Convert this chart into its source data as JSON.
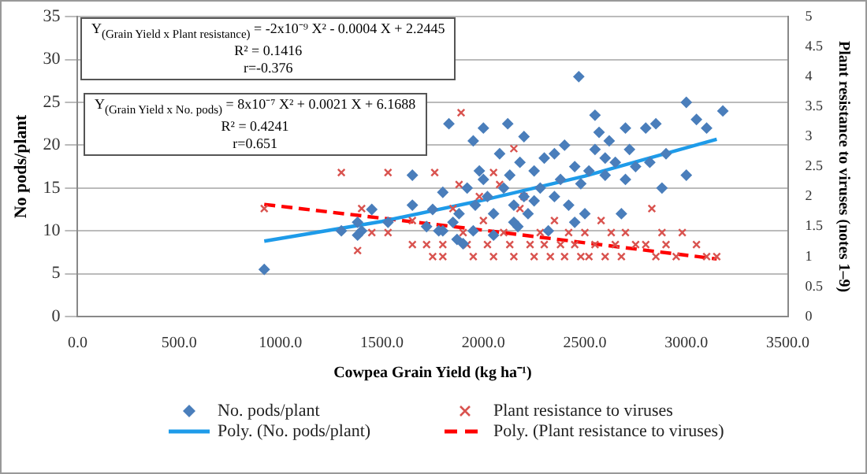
{
  "chart_data": {
    "type": "scatter",
    "xlabel": "Cowpea Grain Yield (kg ha⁻¹)",
    "ylabel": "No pods/plant",
    "y2label": "Plant resistance to viruses (notes 1–9)",
    "xlim": [
      0,
      3500
    ],
    "xticks": [
      {
        "value": 0,
        "label": "0.0"
      },
      {
        "value": 500,
        "label": "500.0"
      },
      {
        "value": 1000,
        "label": "1000.0"
      },
      {
        "value": 1500,
        "label": "1500.0"
      },
      {
        "value": 2000,
        "label": "2000.0"
      },
      {
        "value": 2500,
        "label": "2500.0"
      },
      {
        "value": 3000,
        "label": "3000.0"
      },
      {
        "value": 3500,
        "label": "3500.0"
      }
    ],
    "ylim": [
      0,
      35
    ],
    "yticks": [
      0,
      5,
      10,
      15,
      20,
      25,
      30,
      35
    ],
    "y2lim": [
      0,
      5
    ],
    "y2ticks": [
      0,
      0.5,
      1,
      1.5,
      2,
      2.5,
      3,
      3.5,
      4,
      4.5,
      5
    ],
    "grid": "y",
    "legend": "bottom",
    "annotations": [
      "Y$_{(Grain Yield x Plant resistance)}$ = -2x10⁻⁹ X² - 0.0004 X + 2.2445",
      "R² = 0.1416",
      "r=-0.376",
      "Y$_{(Grain Yield x No. pods)}$ = 8x10⁻⁷ X² + 0.0021 X + 6.1688",
      "R² = 0.4241",
      "r=0.651"
    ],
    "series": [
      {
        "name": "No. pods/plant",
        "marker": "diamond",
        "color": "#4a7ebb",
        "x": [
          920,
          1300,
          1380,
          1400,
          1380,
          1450,
          1530,
          1650,
          1650,
          1720,
          1750,
          1780,
          1800,
          1830,
          1850,
          1870,
          1880,
          1900,
          1920,
          1950,
          1960,
          1980,
          2000,
          2000,
          2020,
          2050,
          2080,
          2100,
          2120,
          2130,
          2150,
          2170,
          2180,
          2200,
          2200,
          2220,
          2250,
          2280,
          2300,
          2320,
          2350,
          2380,
          2400,
          2420,
          2450,
          2480,
          2470,
          2500,
          2520,
          2550,
          2570,
          2600,
          2620,
          2650,
          2680,
          2700,
          2720,
          2750,
          2800,
          2820,
          2850,
          2880,
          2900,
          3000,
          3000,
          3050,
          3100,
          3180,
          1800,
          1950,
          2050,
          2150,
          2250,
          2350,
          2450,
          2600,
          2700,
          2550
        ],
        "values": [
          5.5,
          10,
          11,
          10,
          9.5,
          12.5,
          11,
          16.5,
          13,
          10.5,
          12.5,
          10,
          14.5,
          22.5,
          11,
          9,
          12,
          8.5,
          15,
          20.5,
          13,
          17,
          16,
          22,
          14,
          12,
          19,
          15,
          22.5,
          16.5,
          13,
          10.5,
          18,
          14,
          21,
          12,
          17,
          15,
          18.5,
          10,
          19,
          16,
          20,
          13,
          17.5,
          15.5,
          28,
          12,
          17,
          19.5,
          21.5,
          16.5,
          20.5,
          18,
          12,
          16,
          19.5,
          17.5,
          22,
          18,
          22.5,
          15,
          19,
          25,
          16.5,
          23,
          22,
          24,
          10,
          10,
          9.5,
          11,
          13.5,
          14,
          11,
          18.5,
          22,
          23.5
        ]
      },
      {
        "name": "Plant resistance to viruses",
        "marker": "cross",
        "axis": "y2",
        "color": "#d9534f",
        "x": [
          920,
          1300,
          1380,
          1400,
          1450,
          1530,
          1530,
          1650,
          1650,
          1720,
          1750,
          1760,
          1800,
          1800,
          1890,
          1850,
          1880,
          1900,
          1920,
          1950,
          1980,
          2000,
          2020,
          2050,
          2080,
          2100,
          2130,
          2150,
          2180,
          2200,
          2230,
          2250,
          2280,
          2300,
          2330,
          2350,
          2380,
          2400,
          2420,
          2450,
          2480,
          2500,
          2520,
          2550,
          2580,
          2600,
          2630,
          2650,
          2680,
          2700,
          2750,
          2800,
          2830,
          2850,
          2880,
          2900,
          2950,
          2980,
          3050,
          3100,
          3150,
          2150,
          2050
        ],
        "values": [
          1.8,
          2.4,
          1.1,
          1.8,
          1.4,
          2.4,
          1.4,
          1.2,
          1.6,
          1.2,
          1,
          2.4,
          1,
          1.2,
          3.4,
          1.8,
          2.2,
          1.4,
          1.2,
          1,
          2,
          1.6,
          1.2,
          1,
          2.2,
          1.4,
          1.2,
          1,
          1.8,
          2,
          1.2,
          1,
          1.4,
          1.2,
          1,
          1.6,
          1.2,
          1,
          1.4,
          1.2,
          1,
          1.4,
          1,
          1.2,
          1.6,
          1,
          1.4,
          1.2,
          1,
          1.4,
          1.2,
          1.2,
          1.8,
          1,
          1.4,
          1.2,
          1,
          1.4,
          1.2,
          1,
          1,
          2.8,
          2.4
        ]
      },
      {
        "name": "Poly. (No. pods/plant)",
        "type": "line",
        "marker": "none",
        "line_style": "solid",
        "color": "#1e9be9",
        "x": [
          920,
          1500,
          2000,
          2500,
          3150
        ],
        "values": [
          8.8,
          11.1,
          13.6,
          16.4,
          20.7
        ]
      },
      {
        "name": "Poly. (Plant resistance to viruses)",
        "type": "line",
        "marker": "none",
        "line_style": "dashed",
        "axis": "y2",
        "color": "#ff0000",
        "x": [
          920,
          1500,
          2000,
          2500,
          3150
        ],
        "values": [
          1.87,
          1.64,
          1.44,
          1.23,
          0.96
        ]
      }
    ]
  }
}
